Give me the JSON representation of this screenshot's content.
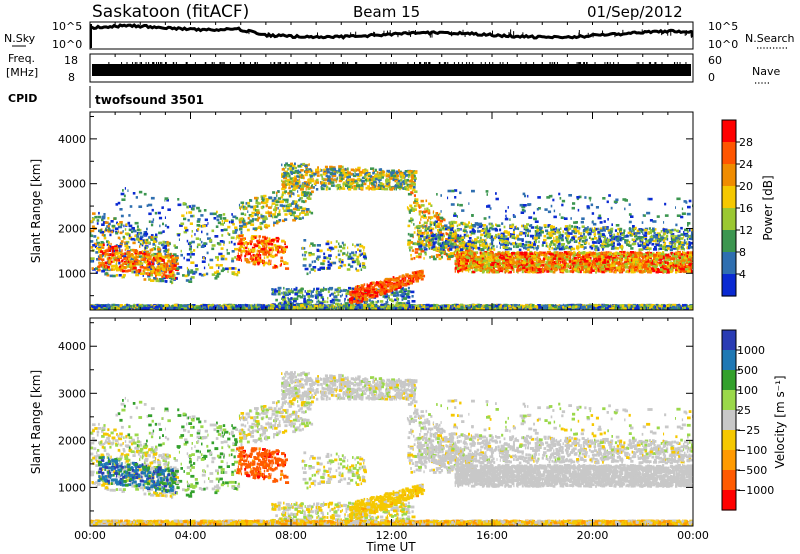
{
  "header": {
    "title": "Saskatoon (fitACF)",
    "beam": "Beam 15",
    "date": "01/Sep/2012"
  },
  "strips": {
    "nsky_label": "N.Sky",
    "nsearch_label": "N.Search",
    "freq_label_1": "Freq.",
    "freq_label_2": "[MHz]",
    "nave_label": "Nave",
    "cpid_label": "CPID",
    "cpid_value": "twofsound 3501",
    "noise_ticks_left": [
      "10^5",
      "10^0"
    ],
    "noise_ticks_right": [
      "10^5",
      "10^0"
    ],
    "freq_ticks": [
      "18",
      "8"
    ],
    "nave_ticks": [
      "60",
      "0"
    ]
  },
  "colorbars": {
    "power": {
      "label": "Power [dB]",
      "ticks": [
        "28",
        "24",
        "20",
        "16",
        "12",
        "8",
        "4"
      ],
      "colors": [
        "#ff0000",
        "#ff5500",
        "#f08c00",
        "#f5c800",
        "#9bc832",
        "#3c9650",
        "#2f6fb0",
        "#0a2ad2"
      ]
    },
    "velocity": {
      "label": "Velocity [m s⁻¹]",
      "ticks": [
        "1000",
        "500",
        "100",
        "25",
        "−25",
        "−100",
        "−500",
        "−1000"
      ],
      "colors": [
        "#2a3cb4",
        "#1f78b4",
        "#33a02c",
        "#9bd84a",
        "#c8c8c8",
        "#f5c800",
        "#ff9a00",
        "#ff5a00",
        "#ff0000"
      ]
    }
  },
  "chart_data": [
    {
      "type": "heatmap",
      "panel": "power",
      "ylabel": "Slant Range [km]",
      "xlabel": "Time UT",
      "x_ticks": [
        "00:00",
        "04:00",
        "08:00",
        "12:00",
        "16:00",
        "20:00",
        "00:00"
      ],
      "xlim": [
        0,
        24
      ],
      "ylim": [
        180,
        4600
      ],
      "y_ticks": [
        1000,
        2000,
        3000,
        4000
      ]
    },
    {
      "type": "heatmap",
      "panel": "velocity",
      "ylabel": "Slant Range [km]",
      "xlabel": "Time UT",
      "x_ticks": [
        "00:00",
        "04:00",
        "08:00",
        "12:00",
        "16:00",
        "20:00",
        "00:00"
      ],
      "xlim": [
        0,
        24
      ],
      "ylim": [
        180,
        4600
      ],
      "y_ticks": [
        1000,
        2000,
        3000,
        4000
      ]
    }
  ]
}
